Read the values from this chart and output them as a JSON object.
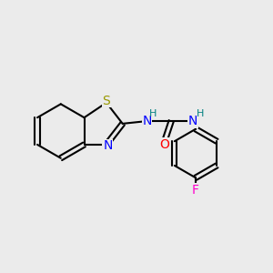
{
  "bg_color": "#ebebeb",
  "bond_color": "#000000",
  "bond_lw": 1.5,
  "atom_colors": {
    "S": "#999900",
    "N": "#0000ff",
    "O": "#ff0000",
    "F": "#ff00cc",
    "H": "#008080",
    "C": "#000000"
  },
  "font_size": 9,
  "font_size_small": 8
}
